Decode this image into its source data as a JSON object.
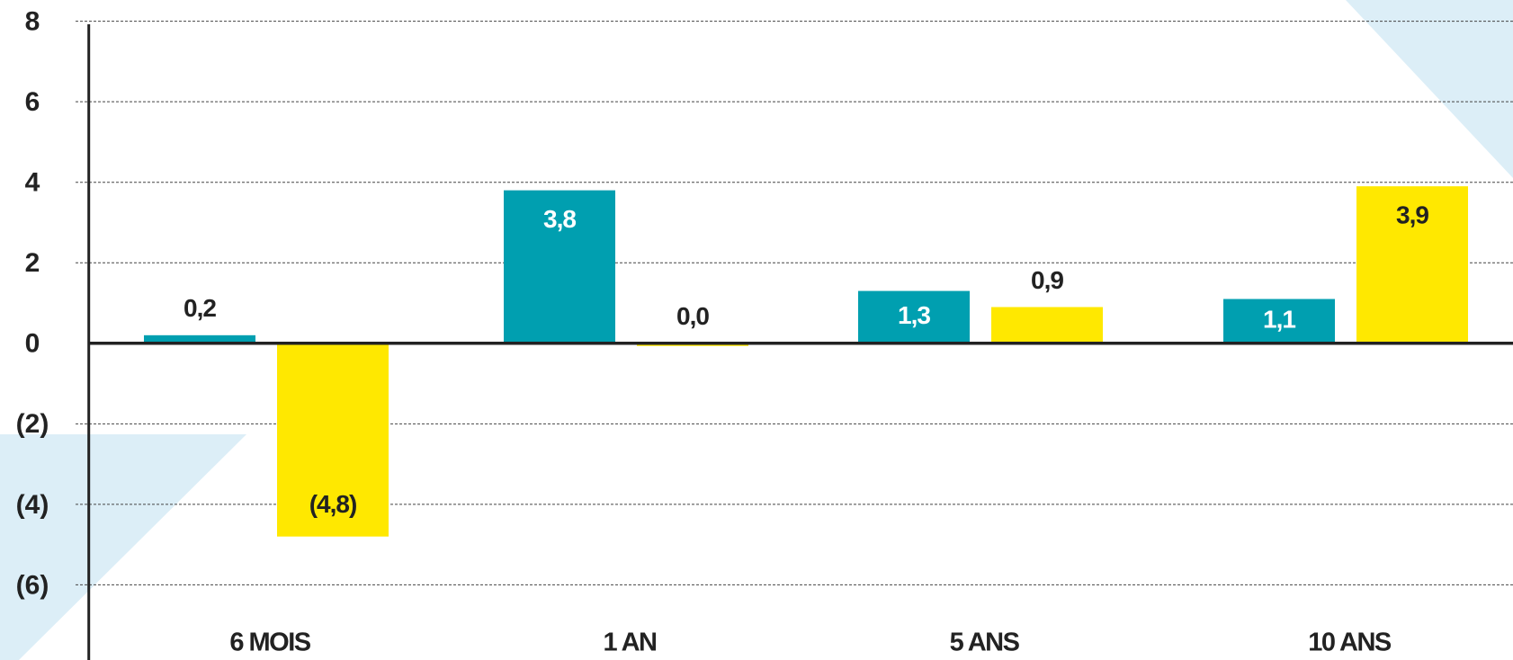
{
  "chart_data": {
    "type": "bar",
    "categories": [
      "6 MOIS",
      "1 AN",
      "5 ANS",
      "10 ANS"
    ],
    "series": [
      {
        "color": "#009fb0",
        "values": [
          0.2,
          3.8,
          1.3,
          1.1
        ],
        "value_labels": [
          "0,2",
          "3,8",
          "1,3",
          "1,1"
        ]
      },
      {
        "color": "#ffe800",
        "values": [
          -4.8,
          0.0,
          0.9,
          3.9
        ],
        "value_labels": [
          "(4,8)",
          "0,0",
          "0,9",
          "3,9"
        ]
      }
    ],
    "ylim": [
      -7.8,
      8
    ],
    "yticks": [
      8,
      6,
      4,
      2,
      0,
      {
        "value": -2,
        "label": "(2)"
      },
      {
        "value": -4,
        "label": "(4)"
      },
      {
        "value": -6,
        "label": "(6)"
      }
    ],
    "grid": true
  }
}
